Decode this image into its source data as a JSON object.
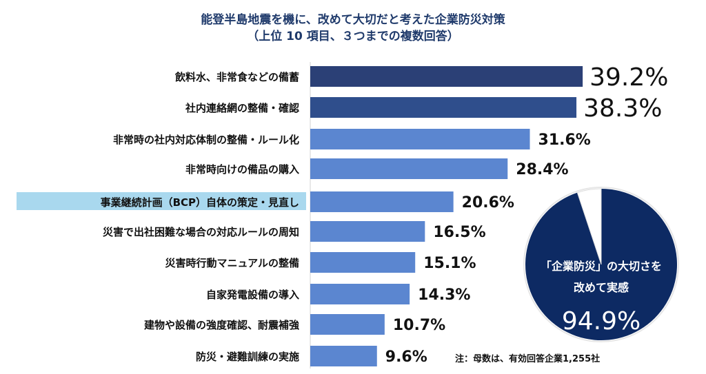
{
  "chart_data": {
    "type": "bar",
    "orientation": "horizontal",
    "title": "能登半島地震を機に、改めて大切だと考えた企業防災対策",
    "subtitle": "（上位 10 項目、３つまでの複数回答）",
    "categories": [
      "飲料水、非常食などの備蓄",
      "社内連絡網の整備・確認",
      "非常時の社内対応体制の整備・ルール化",
      "非常時向けの備品の購入",
      "事業継続計画（BCP）自体の策定・見直し",
      "災害で出社困難な場合の対応ルールの周知",
      "災害時行動マニュアルの整備",
      "自家発電設備の導入",
      "建物や設備の強度確認、耐震補強",
      "防災・避難訓練の実施"
    ],
    "values": [
      39.2,
      38.3,
      31.6,
      28.4,
      20.6,
      16.5,
      15.1,
      14.3,
      10.7,
      9.6
    ],
    "value_labels": [
      "39.2%",
      "38.3%",
      "31.6%",
      "28.4%",
      "20.6%",
      "16.5%",
      "15.1%",
      "14.3%",
      "10.7%",
      "9.6%"
    ],
    "highlighted_category_index": 4,
    "colors": {
      "top1": "#2b4076",
      "top2": "#2f4e8c",
      "rest": "#5b86d0",
      "highlight_bg": "#a9d8ee",
      "pie": "#0d2a63"
    },
    "inset_pie": {
      "type": "pie",
      "value": 94.9,
      "label_line1": "「企業防災」の大切さを",
      "label_line2": "改めて実感",
      "value_label": "94.9%"
    },
    "note": "注：母数は、有効回答企業1,255社"
  }
}
